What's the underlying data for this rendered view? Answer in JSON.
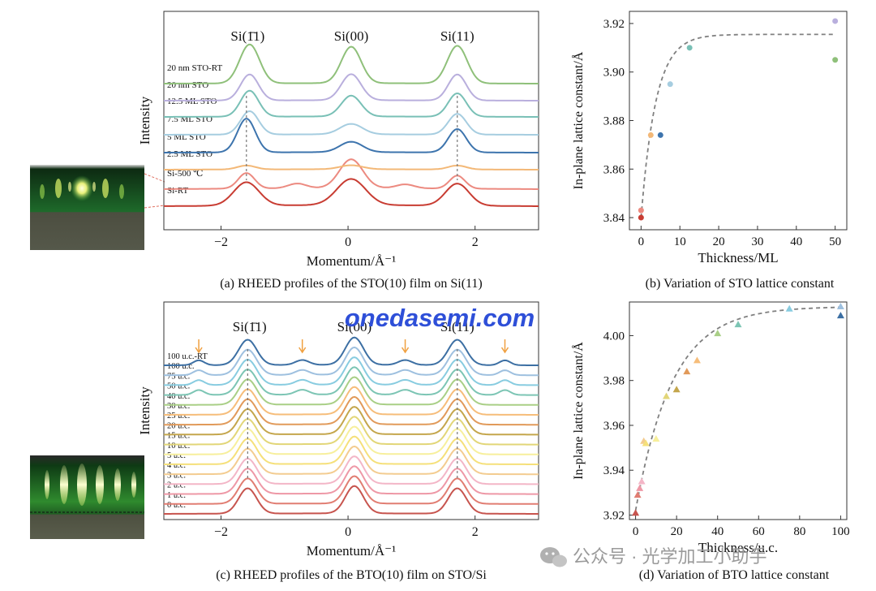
{
  "colors": {
    "sto_curves": [
      "#c83c32",
      "#ec8a80",
      "#f3b877",
      "#3d74ad",
      "#a6cde0",
      "#79c0b6",
      "#b9afdd",
      "#8fc07a"
    ],
    "bto_curves": [
      "#c7544e",
      "#e17d72",
      "#ee98a6",
      "#f3b6c7",
      "#f3cc90",
      "#f5e07a",
      "#f7ef9c",
      "#e2d678",
      "#c4a64c",
      "#e19a5a",
      "#f6bd7a",
      "#a9cf86",
      "#7cc5b4",
      "#88cce0",
      "#9ec0df",
      "#3c6fa3"
    ],
    "arrow": "#f0a040",
    "fit_line": "#808080",
    "watermark": "#2e4fd8",
    "rheed_top": "#0d2a12",
    "rheed_bottom": "#4a4c3e"
  },
  "watermark": "onedasemi.com",
  "wechat": {
    "icon": "wechat-icon",
    "text": "公众号 · 光学加工小助手"
  },
  "chart_data": [
    {
      "id": "a",
      "type": "line",
      "caption": "(a) RHEED profiles of the STO(10) film on Si(11)",
      "xlabel": "Momentum/Å⁻¹",
      "ylabel": "Intensity",
      "xlim": [
        -2.9,
        3.0
      ],
      "xticks": [
        "−2",
        "0",
        "2"
      ],
      "xtick_values": [
        -2,
        0,
        2
      ],
      "peak_labels": [
        {
          "text": "Si(1̄1)",
          "x": -1.58
        },
        {
          "text": "Si(00)",
          "x": 0.05
        },
        {
          "text": "Si(11)",
          "x": 1.72
        }
      ],
      "series": [
        {
          "name": "Si-RT",
          "peaks": [
            [
              -1.6,
              0.28,
              0.9
            ],
            [
              0.05,
              0.32,
              1.0
            ],
            [
              1.72,
              0.26,
              0.85
            ]
          ],
          "baseline": 0.05
        },
        {
          "name": "Si-500 ℃",
          "peaks": [
            [
              -1.6,
              0.18,
              0.6
            ],
            [
              0.05,
              0.26,
              1.1
            ],
            [
              1.72,
              0.17,
              0.5
            ]
          ],
          "baseline": 0.05
        },
        {
          "name": "2.5 ML STO",
          "peaks": [
            [
              -1.6,
              0.2,
              0.15
            ],
            [
              0.05,
              0.25,
              0.15
            ],
            [
              1.72,
              0.2,
              0.15
            ]
          ],
          "baseline": 0.02
        },
        {
          "name": "5 ML STO",
          "peaks": [
            [
              -1.6,
              0.2,
              1.3
            ],
            [
              0.05,
              0.25,
              0.4
            ],
            [
              1.72,
              0.2,
              0.9
            ]
          ],
          "baseline": 0.02
        },
        {
          "name": "7.5 ML STO",
          "peaks": [
            [
              -1.55,
              0.2,
              0.9
            ],
            [
              0.05,
              0.25,
              0.4
            ],
            [
              1.72,
              0.2,
              0.8
            ]
          ],
          "baseline": 0.02
        },
        {
          "name": "12.5 ML STO",
          "peaks": [
            [
              -1.55,
              0.2,
              1.0
            ],
            [
              0.05,
              0.22,
              0.8
            ],
            [
              1.72,
              0.2,
              0.9
            ]
          ],
          "baseline": 0.02
        },
        {
          "name": "20 nm STO",
          "peaks": [
            [
              -1.55,
              0.2,
              1.0
            ],
            [
              0.05,
              0.22,
              1.0
            ],
            [
              1.72,
              0.2,
              1.0
            ]
          ],
          "baseline": 0.02
        },
        {
          "name": "20 nm STO-RT",
          "peaks": [
            [
              -1.55,
              0.22,
              1.5
            ],
            [
              0.05,
              0.22,
              1.4
            ],
            [
              1.72,
              0.22,
              1.45
            ]
          ],
          "baseline": 0.02
        }
      ],
      "guide_lines": [
        -1.6,
        1.72
      ]
    },
    {
      "id": "b",
      "type": "scatter",
      "caption": "(b) Variation of STO lattice constant",
      "xlabel": "Thickness/ML",
      "ylabel": "In-plane lattice constant/Å",
      "xlim": [
        -3,
        53
      ],
      "ylim": [
        3.835,
        3.925
      ],
      "xticks": [
        0,
        10,
        20,
        30,
        40,
        50
      ],
      "yticks": [
        3.84,
        3.86,
        3.88,
        3.9,
        3.92
      ],
      "points": [
        {
          "x": 0,
          "y": 3.84,
          "color": "#c83c32"
        },
        {
          "x": 0,
          "y": 3.843,
          "color": "#ec8a80"
        },
        {
          "x": 2.5,
          "y": 3.874,
          "color": "#f3b877"
        },
        {
          "x": 5,
          "y": 3.874,
          "color": "#3d74ad"
        },
        {
          "x": 7.5,
          "y": 3.895,
          "color": "#a6cde0"
        },
        {
          "x": 12.5,
          "y": 3.91,
          "color": "#79c0b6"
        },
        {
          "x": 50,
          "y": 3.921,
          "color": "#b9afdd"
        },
        {
          "x": 50,
          "y": 3.905,
          "color": "#8fc07a"
        }
      ],
      "fit": {
        "a": 3.9155,
        "b": 0.0755,
        "tau": 3.8,
        "x0": 0,
        "x1": 50
      }
    },
    {
      "id": "c",
      "type": "line",
      "caption": "(c) RHEED profiles of the BTO(10) film on STO/Si",
      "xlabel": "Momentum/Å⁻¹",
      "ylabel": "Intensity",
      "xlim": [
        -2.9,
        3.0
      ],
      "xticks": [
        "−2",
        "0",
        "2"
      ],
      "xtick_values": [
        -2,
        0,
        2
      ],
      "peak_labels": [
        {
          "text": "Si(1̄1)",
          "x": -1.55
        },
        {
          "text": "Si(00)",
          "x": 0.1
        },
        {
          "text": "Si(11)",
          "x": 1.72
        }
      ],
      "arrows_x": [
        -2.35,
        -0.72,
        0.9,
        2.47
      ],
      "series": [
        {
          "name": "0 u.c."
        },
        {
          "name": "1 u.c."
        },
        {
          "name": "2 u.c."
        },
        {
          "name": "3 u.c."
        },
        {
          "name": "4 u.c."
        },
        {
          "name": "5 u.c."
        },
        {
          "name": "10 u.c."
        },
        {
          "name": "15 u.c."
        },
        {
          "name": "20 u.c."
        },
        {
          "name": "25 u.c."
        },
        {
          "name": "30 u.c."
        },
        {
          "name": "40 u.c."
        },
        {
          "name": "50 u.c."
        },
        {
          "name": "75 u.c."
        },
        {
          "name": "100 u.c."
        },
        {
          "name": "100 u.c.-RT"
        }
      ],
      "guide_lines": [
        -1.58,
        1.72
      ]
    },
    {
      "id": "d",
      "type": "scatter",
      "caption": "(d) Variation of BTO lattice constant",
      "xlabel": "Thickness/u.c.",
      "ylabel": "In-plane lattice constant/Å",
      "xlim": [
        -3,
        103
      ],
      "ylim": [
        3.918,
        4.015
      ],
      "xticks": [
        0,
        20,
        40,
        60,
        80,
        100
      ],
      "yticks": [
        3.92,
        3.94,
        3.96,
        3.98,
        4.0
      ],
      "points": [
        {
          "x": 0,
          "y": 3.921,
          "color": "#c7544e"
        },
        {
          "x": 1,
          "y": 3.929,
          "color": "#e17d72"
        },
        {
          "x": 2,
          "y": 3.932,
          "color": "#ee98a6"
        },
        {
          "x": 3,
          "y": 3.935,
          "color": "#f3b6c7"
        },
        {
          "x": 4,
          "y": 3.953,
          "color": "#f3cc90"
        },
        {
          "x": 5,
          "y": 3.952,
          "color": "#f5e07a"
        },
        {
          "x": 10,
          "y": 3.954,
          "color": "#f7ef9c"
        },
        {
          "x": 15,
          "y": 3.973,
          "color": "#e2d678"
        },
        {
          "x": 20,
          "y": 3.976,
          "color": "#c4a64c"
        },
        {
          "x": 25,
          "y": 3.984,
          "color": "#e19a5a"
        },
        {
          "x": 30,
          "y": 3.989,
          "color": "#f6bd7a"
        },
        {
          "x": 40,
          "y": 4.001,
          "color": "#a9cf86"
        },
        {
          "x": 50,
          "y": 4.005,
          "color": "#7cc5b4"
        },
        {
          "x": 75,
          "y": 4.012,
          "color": "#88cce0"
        },
        {
          "x": 100,
          "y": 4.013,
          "color": "#9ec0df"
        },
        {
          "x": 100,
          "y": 4.009,
          "color": "#3c6fa3"
        }
      ],
      "fit": {
        "a": 4.013,
        "b": 0.091,
        "tau": 18,
        "x0": 0,
        "x1": 100
      }
    }
  ]
}
